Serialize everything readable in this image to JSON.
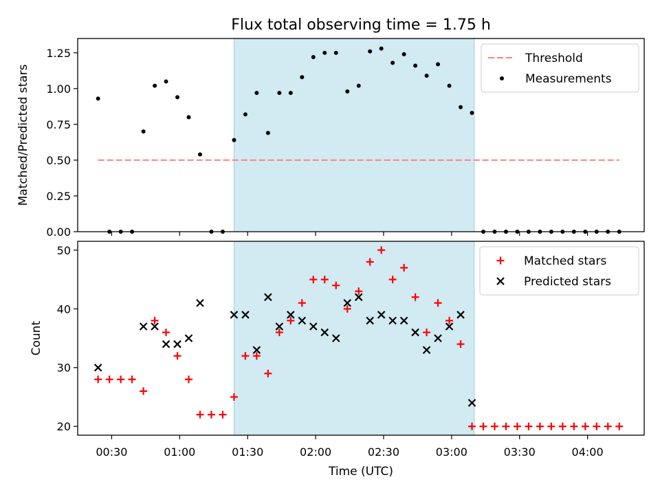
{
  "figure_title": "Flux total observing time = 1.75 h",
  "colors": {
    "threshold": "#ff8080",
    "measurements": "#000000",
    "matched": "#ff0000",
    "predicted": "#000000",
    "shade": "#add8e6"
  },
  "chart_data": [
    {
      "type": "scatter",
      "ylabel": "Matched/Predicted stars",
      "xlim": [
        "00:15",
        "04:25"
      ],
      "ylim": [
        0,
        1.35
      ],
      "yticks": [
        "0.00",
        "0.25",
        "0.50",
        "0.75",
        "1.00",
        "1.25"
      ],
      "shaded_interval": [
        "01:24",
        "03:10"
      ],
      "legend": {
        "position": "top-right",
        "entries": [
          "Threshold",
          "Measurements"
        ]
      },
      "threshold": {
        "name": "Threshold",
        "value": 0.5,
        "x_range": [
          "00:24",
          "04:14"
        ]
      },
      "series": [
        {
          "name": "Measurements",
          "x": [
            "00:24",
            "00:29",
            "00:34",
            "00:39",
            "00:44",
            "00:49",
            "00:54",
            "00:59",
            "01:04",
            "01:09",
            "01:14",
            "01:19",
            "01:24",
            "01:29",
            "01:34",
            "01:39",
            "01:44",
            "01:49",
            "01:54",
            "01:59",
            "02:04",
            "02:09",
            "02:14",
            "02:19",
            "02:24",
            "02:29",
            "02:34",
            "02:39",
            "02:44",
            "02:49",
            "02:54",
            "02:59",
            "03:04",
            "03:09",
            "03:14",
            "03:19",
            "03:24",
            "03:29",
            "03:34",
            "03:39",
            "03:44",
            "03:49",
            "03:54",
            "03:59",
            "04:04",
            "04:09",
            "04:14"
          ],
          "y": [
            0.93,
            0,
            0,
            0,
            0.7,
            1.02,
            1.05,
            0.94,
            0.8,
            0.54,
            0,
            0,
            0.64,
            0.82,
            0.97,
            0.69,
            0.97,
            0.97,
            1.08,
            1.22,
            1.25,
            1.25,
            0.98,
            1.02,
            1.26,
            1.28,
            1.18,
            1.24,
            1.16,
            1.09,
            1.17,
            1.02,
            0.87,
            0.83,
            0,
            0,
            0,
            0,
            0,
            0,
            0,
            0,
            0,
            0,
            0,
            0,
            0
          ]
        }
      ]
    },
    {
      "type": "scatter",
      "xlabel": "Time (UTC)",
      "ylabel": "Count",
      "xlim": [
        "00:15",
        "04:25"
      ],
      "ylim": [
        18.5,
        51.5
      ],
      "yticks": [
        "20",
        "30",
        "40",
        "50"
      ],
      "xticks": [
        "00:30",
        "01:00",
        "01:30",
        "02:00",
        "02:30",
        "03:00",
        "03:30",
        "04:00"
      ],
      "shaded_interval": [
        "01:24",
        "03:10"
      ],
      "legend": {
        "position": "top-right",
        "entries": [
          "Matched stars",
          "Predicted stars"
        ]
      },
      "series": [
        {
          "name": "Matched stars",
          "x": [
            "00:24",
            "00:29",
            "00:34",
            "00:39",
            "00:44",
            "00:49",
            "00:54",
            "00:59",
            "01:04",
            "01:09",
            "01:14",
            "01:19",
            "01:24",
            "01:29",
            "01:34",
            "01:39",
            "01:44",
            "01:49",
            "01:54",
            "01:59",
            "02:04",
            "02:09",
            "02:14",
            "02:19",
            "02:24",
            "02:29",
            "02:34",
            "02:39",
            "02:44",
            "02:49",
            "02:54",
            "02:59",
            "03:04",
            "03:09",
            "03:14",
            "03:19",
            "03:24",
            "03:29",
            "03:34",
            "03:39",
            "03:44",
            "03:49",
            "03:54",
            "03:59",
            "04:04",
            "04:09",
            "04:14"
          ],
          "y": [
            28,
            28,
            28,
            28,
            26,
            38,
            36,
            32,
            28,
            22,
            22,
            22,
            25,
            32,
            32,
            29,
            36,
            38,
            41,
            45,
            45,
            44,
            40,
            43,
            48,
            50,
            45,
            47,
            42,
            36,
            41,
            38,
            34,
            20,
            20,
            20,
            20,
            20,
            20,
            20,
            20,
            20,
            20,
            20,
            20,
            20,
            20
          ]
        },
        {
          "name": "Predicted stars",
          "x": [
            "00:24",
            "00:44",
            "00:49",
            "00:54",
            "00:59",
            "01:04",
            "01:09",
            "01:24",
            "01:29",
            "01:34",
            "01:39",
            "01:44",
            "01:49",
            "01:54",
            "01:59",
            "02:04",
            "02:09",
            "02:14",
            "02:19",
            "02:24",
            "02:29",
            "02:34",
            "02:39",
            "02:44",
            "02:49",
            "02:54",
            "02:59",
            "03:04",
            "03:09"
          ],
          "y": [
            30,
            37,
            37,
            34,
            34,
            35,
            41,
            39,
            39,
            33,
            42,
            37,
            39,
            38,
            37,
            36,
            35,
            41,
            42,
            38,
            39,
            38,
            38,
            36,
            33,
            35,
            37,
            39,
            24
          ]
        }
      ]
    }
  ]
}
